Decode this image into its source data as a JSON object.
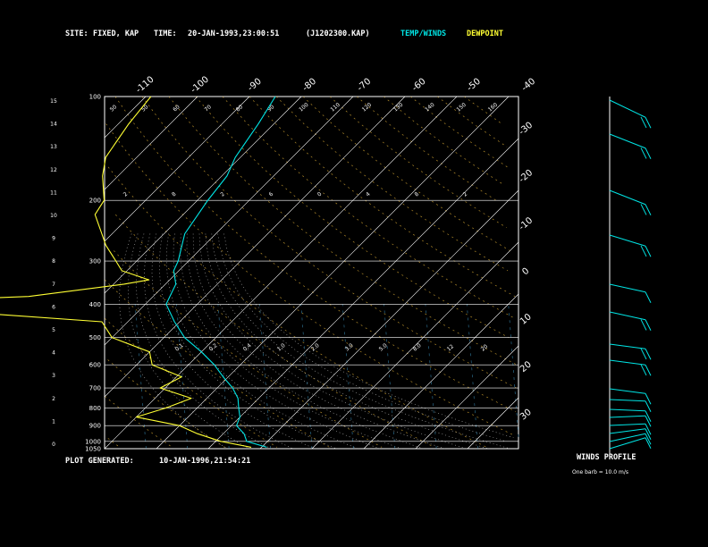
{
  "header": {
    "site_label": "SITE:",
    "site_value": "FIXED, KAP",
    "time_label": "TIME:",
    "time_value": "20-JAN-1993,23:00:51",
    "file_id": "(J1202300.KAP)",
    "legend_temp": "TEMP/WINDS",
    "legend_dew": "DEWPOINT"
  },
  "footer": {
    "generated_label": "PLOT GENERATED:",
    "generated_value": "10-JAN-1996,21:54:21",
    "winds_title": "WINDS PROFILE",
    "barb_note": "One barb = 10.0 m/s"
  },
  "colors": {
    "temp": "#00e5e5",
    "dew": "#ffff33",
    "dry_adiabat": "#b08a2a",
    "moist_adiabat": "#b5b5b5",
    "mixing_ratio": "#2a6a8a",
    "grid": "#ffffff",
    "header_label": "#ffffff"
  },
  "chart_data": {
    "type": "line",
    "diagram": "skew-T log-p",
    "pressure_ticks": [
      "100",
      "200",
      "300",
      "400",
      "500",
      "600",
      "700",
      "800",
      "900",
      "1000",
      "1050"
    ],
    "height_ticks": [
      "15",
      "14",
      "13",
      "12",
      "11",
      "10",
      "9",
      "8",
      "7",
      "6",
      "5",
      "4",
      "3",
      "2",
      "1",
      "0"
    ],
    "top_temp_ticks": [
      "-110",
      "-100",
      "-90",
      "-80",
      "-70",
      "-60",
      "-50",
      "-40"
    ],
    "right_temp_ticks": [
      "-30",
      "-20",
      "-10",
      "0",
      "10",
      "20",
      "30"
    ],
    "dry_adiabat_labels": [
      "2",
      "8",
      "2",
      "6",
      "0",
      "4",
      "8",
      "2"
    ],
    "mixing_ratio_labels": [
      "0.1",
      "0.2",
      "0.4",
      "1.0",
      "2.0",
      "3.0",
      "5.0",
      "8.0",
      "12",
      "20"
    ],
    "moist_adiabat_labels": [
      "50",
      "50",
      "60",
      "70",
      "80",
      "90",
      "100",
      "110",
      "120",
      "130",
      "140",
      "150",
      "160"
    ],
    "series": [
      {
        "name": "TEMP/WINDS",
        "points": [
          [
            1040,
            -9
          ],
          [
            1000,
            -14
          ],
          [
            950,
            -16
          ],
          [
            900,
            -19
          ],
          [
            850,
            -20
          ],
          [
            800,
            -22
          ],
          [
            750,
            -24
          ],
          [
            700,
            -27
          ],
          [
            650,
            -31
          ],
          [
            600,
            -35
          ],
          [
            550,
            -40
          ],
          [
            500,
            -46
          ],
          [
            450,
            -51
          ],
          [
            400,
            -56
          ],
          [
            350,
            -58
          ],
          [
            320,
            -61
          ],
          [
            300,
            -62
          ],
          [
            250,
            -66
          ],
          [
            200,
            -68
          ],
          [
            170,
            -69
          ],
          [
            150,
            -71
          ],
          [
            120,
            -73
          ],
          [
            100,
            -75
          ]
        ]
      },
      {
        "name": "DEWPOINT",
        "points": [
          [
            1040,
            -12
          ],
          [
            1000,
            -19
          ],
          [
            950,
            -25
          ],
          [
            900,
            -30
          ],
          [
            850,
            -40
          ],
          [
            800,
            -36
          ],
          [
            750,
            -33
          ],
          [
            700,
            -41
          ],
          [
            650,
            -39
          ],
          [
            600,
            -47
          ],
          [
            550,
            -50
          ],
          [
            500,
            -60
          ],
          [
            450,
            -65
          ],
          [
            420,
            -95
          ],
          [
            400,
            -104
          ],
          [
            390,
            -102
          ],
          [
            380,
            -84
          ],
          [
            350,
            -68
          ],
          [
            340,
            -64
          ],
          [
            320,
            -71
          ],
          [
            300,
            -74
          ],
          [
            270,
            -79
          ],
          [
            250,
            -82
          ],
          [
            220,
            -87
          ],
          [
            200,
            -88
          ],
          [
            170,
            -93
          ],
          [
            150,
            -96
          ],
          [
            120,
            -98
          ],
          [
            100,
            -99
          ]
        ]
      }
    ],
    "xlim": [
      -40,
      40
    ],
    "ylim": [
      1050,
      100
    ],
    "grid": true
  },
  "winds": [
    {
      "y": 112,
      "dir": 300,
      "speed": 20
    },
    {
      "y": 150,
      "dir": 290,
      "speed": 20
    },
    {
      "y": 213,
      "dir": 290,
      "speed": 15
    },
    {
      "y": 263,
      "dir": 280,
      "speed": 15
    },
    {
      "y": 318,
      "dir": 270,
      "speed": 10
    },
    {
      "y": 349,
      "dir": 270,
      "speed": 20
    },
    {
      "y": 385,
      "dir": 260,
      "speed": 20
    },
    {
      "y": 403,
      "dir": 260,
      "speed": 20
    },
    {
      "y": 435,
      "dir": 260,
      "speed": 10
    },
    {
      "y": 447,
      "dir": 250,
      "speed": 10
    },
    {
      "y": 458,
      "dir": 250,
      "speed": 10
    },
    {
      "y": 467,
      "dir": 240,
      "speed": 10
    },
    {
      "y": 476,
      "dir": 240,
      "speed": 10
    },
    {
      "y": 485,
      "dir": 230,
      "speed": 10
    },
    {
      "y": 494,
      "dir": 220,
      "speed": 10
    },
    {
      "y": 502,
      "dir": 210,
      "speed": 10
    }
  ]
}
